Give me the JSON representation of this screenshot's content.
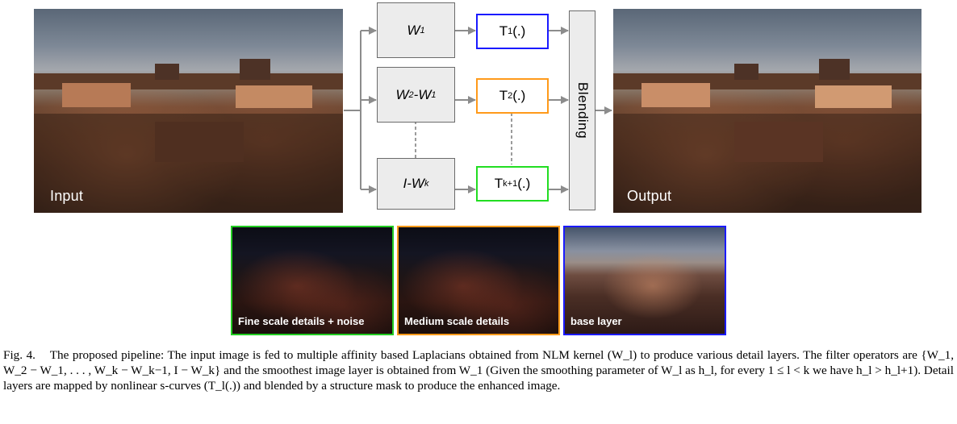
{
  "figure": {
    "input_label": "Input",
    "output_label": "Output",
    "filters": [
      {
        "base": "W",
        "sub": "1",
        "suffix": ""
      },
      {
        "base": "W",
        "sub": "2",
        "suffix": "-W",
        "sub2": "1"
      },
      {
        "base": "I-W",
        "sub": "k",
        "suffix": ""
      }
    ],
    "operators": [
      {
        "base": "T",
        "sub": "1",
        "suffix": "(.)",
        "color": "#1a1aff"
      },
      {
        "base": "T",
        "sub": "2",
        "suffix": "(.)",
        "color": "#ff9a1a"
      },
      {
        "base": "T",
        "sub": "k+1",
        "suffix": "(.)",
        "color": "#22dd22"
      }
    ],
    "blending_label": "Blending",
    "layers": [
      {
        "label": "Fine scale details + noise",
        "color": "#22cc22"
      },
      {
        "label": "Medium scale details",
        "color": "#ff9a1a"
      },
      {
        "label": "base layer",
        "color": "#1a1aff"
      }
    ]
  },
  "caption": {
    "fig_number": "Fig. 4.",
    "text": "The proposed pipeline: The input image is fed to multiple affinity based Laplacians obtained from NLM kernel (W_l) to produce various detail layers. The filter operators are {W_1, W_2 − W_1, . . . , W_k − W_k−1, I − W_k} and the smoothest image layer is obtained from W_1 (Given the smoothing parameter of W_l as h_l, for every 1 ≤ l < k we have h_l > h_l+1). Detail layers are mapped by nonlinear s-curves (T_l(.)) and blended by a structure mask to produce the enhanced image."
  }
}
